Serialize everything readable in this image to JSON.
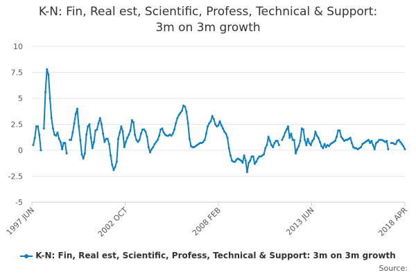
{
  "chart_data": {
    "type": "line",
    "title": "K-N: Fin, Real est, Scientific, Profess, Technical & Support: 3m on 3m growth",
    "title_lines": [
      "K-N: Fin, Real est, Scientific, Profess, Technical & Support:",
      "3m on 3m growth"
    ],
    "xlabel": "",
    "ylabel": "",
    "ylim": [
      -5,
      10
    ],
    "y_ticks": [
      "10",
      "7.5",
      "5",
      "2.5",
      "0",
      "-2.5",
      "-5"
    ],
    "x_ticks": [
      "1997 JUN",
      "2002 OCT",
      "2008 FEB",
      "2013 JUN",
      "2018 APR"
    ],
    "grid": true,
    "legend_position": "bottom",
    "series": [
      {
        "name": "K-N: Fin, Real est, Scientific, Profess, Technical & Support: 3m on 3m growth",
        "color": "#0b7fbf",
        "values": [
          0.5,
          1.2,
          2.3,
          2.3,
          1.5,
          0.0,
          null,
          2.1,
          5.6,
          7.8,
          7.3,
          5.0,
          3.1,
          2.1,
          1.5,
          1.4,
          1.7,
          1.1,
          0.8,
          0.1,
          0.7,
          0.7,
          -0.3,
          null,
          1.0,
          1.0,
          1.7,
          2.6,
          3.5,
          4.0,
          2.3,
          1.0,
          -0.4,
          -0.8,
          -0.3,
          1.5,
          2.3,
          2.5,
          1.2,
          0.2,
          0.8,
          1.9,
          2.0,
          2.6,
          3.1,
          2.5,
          1.6,
          0.8,
          1.1,
          1.1,
          0.6,
          -0.5,
          -1.4,
          -1.9,
          -1.6,
          -1.1,
          1.1,
          1.7,
          2.3,
          1.8,
          0.3,
          0.8,
          1.2,
          1.5,
          1.9,
          2.9,
          2.7,
          1.5,
          1.0,
          0.8,
          1.0,
          1.6,
          2.0,
          2.0,
          1.8,
          1.3,
          0.3,
          -0.2,
          0.1,
          0.3,
          0.6,
          0.8,
          1.0,
          1.4,
          2.0,
          2.1,
          1.7,
          1.5,
          1.4,
          1.4,
          1.5,
          1.4,
          1.6,
          2.0,
          2.6,
          3.1,
          3.4,
          3.6,
          3.8,
          4.3,
          4.2,
          3.7,
          2.6,
          1.1,
          0.4,
          0.3,
          0.3,
          0.4,
          0.5,
          0.6,
          0.7,
          0.7,
          0.8,
          1.0,
          1.6,
          2.3,
          2.6,
          2.8,
          3.3,
          3.0,
          2.5,
          2.3,
          2.4,
          2.8,
          2.4,
          2.1,
          1.8,
          1.6,
          1.2,
          0.2,
          -0.5,
          -1.0,
          -1.1,
          -1.1,
          -0.9,
          -0.8,
          -0.9,
          -1.0,
          -1.2,
          -0.5,
          -1.0,
          -2.1,
          -1.2,
          -1.0,
          -0.6,
          -0.6,
          -1.3,
          -1.1,
          -0.8,
          -0.6,
          -0.6,
          -0.5,
          -0.4,
          0.2,
          0.5,
          1.3,
          0.9,
          0.5,
          0.3,
          0.7,
          0.9,
          0.9,
          0.5,
          null,
          1.0,
          1.3,
          1.7,
          2.0,
          2.3,
          1.2,
          1.6,
          1.0,
          1.0,
          -0.3,
          0.1,
          0.4,
          0.9,
          2.1,
          2.0,
          1.0,
          0.5,
          1.1,
          0.7,
          0.5,
          0.9,
          1.1,
          1.8,
          1.4,
          1.2,
          0.8,
          0.4,
          0.2,
          0.6,
          0.3,
          0.5,
          0.4,
          0.6,
          0.7,
          0.8,
          0.9,
          1.3,
          1.9,
          1.9,
          1.3,
          1.1,
          0.9,
          1.0,
          1.0,
          1.1,
          1.2,
          0.7,
          0.3,
          0.2,
          0.2,
          0.1,
          0.2,
          0.3,
          0.6,
          0.7,
          0.8,
          0.9,
          1.0,
          0.7,
          0.9,
          0.5,
          0.1,
          0.7,
          0.8,
          1.0,
          1.0,
          1.0,
          0.9,
          0.8,
          0.9,
          0.1,
          null,
          0.7,
          0.7,
          0.6,
          0.6,
          0.9,
          1.0,
          0.8,
          0.6,
          0.4,
          0.1
        ]
      }
    ]
  },
  "source_label": "Source:"
}
